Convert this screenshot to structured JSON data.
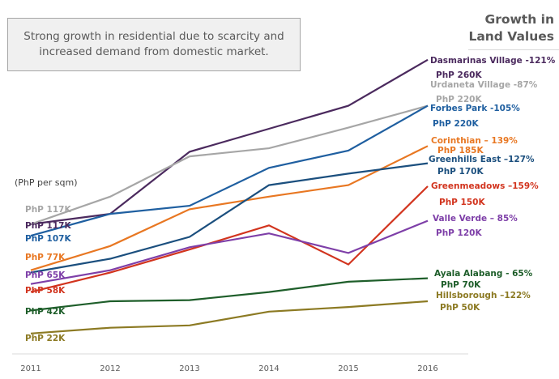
{
  "callout": {
    "text": "Strong growth in residential due to scarcity and increased demand from domestic market."
  },
  "title": {
    "line1": "Growth in",
    "line2": "Land Values"
  },
  "unit_label": "(PhP per sqm)",
  "chart_data": {
    "type": "line",
    "title": "Growth in Land Values",
    "subtitle": "Strong growth in residential due to scarcity and increased demand from domestic market.",
    "xlabel": "",
    "ylabel": "(PhP per sqm)",
    "units": "PhP thousand per sqm",
    "x": [
      "2011",
      "2012",
      "2013",
      "2014",
      "2015",
      "2016"
    ],
    "ylim": [
      0,
      270
    ],
    "grid": false,
    "legend": "end-of-line labels (right)",
    "series": [
      {
        "name": "Dasmarinas Village",
        "growth_label": "Dasmarinas Village -121%",
        "start_label": "PhP 117K",
        "end_label": "PhP 260K",
        "color": "#4B2A5E",
        "values": [
          117,
          126,
          180,
          200,
          220,
          260
        ]
      },
      {
        "name": "Urdaneta Village",
        "growth_label": "Urdaneta Village -87%",
        "start_label": "PhP 117K",
        "end_label": "PhP 220K",
        "color": "#A6A6A6",
        "values": [
          117,
          141,
          176,
          183,
          201,
          220
        ]
      },
      {
        "name": "Forbes Park",
        "growth_label": "Forbes Park -105%",
        "start_label": "PhP 107K",
        "end_label": "PhP 220K",
        "color": "#1F5FA0",
        "values": [
          107,
          126,
          133,
          166,
          181,
          220
        ]
      },
      {
        "name": "Corinthian",
        "growth_label": "Corinthian – 139%",
        "start_label": "PhP 77K",
        "end_label": "PhP 185K",
        "color": "#E87722",
        "values": [
          77,
          98,
          130,
          141,
          151,
          185
        ]
      },
      {
        "name": "Greenhills East",
        "growth_label": "Greenhills East –127%",
        "start_label": "",
        "end_label": "PhP 170K",
        "color": "#1B4F7E",
        "values": [
          75,
          87,
          106,
          151,
          161,
          170
        ]
      },
      {
        "name": "Greenmeadows",
        "growth_label": "Greenmeadows –159%",
        "start_label": "PhP 58K",
        "end_label": "PhP 150K",
        "color": "#D2341E",
        "values": [
          58,
          75,
          95,
          116,
          82,
          150
        ]
      },
      {
        "name": "Valle Verde",
        "growth_label": "Valle Verde – 85%",
        "start_label": "PhP 65K",
        "end_label": "PhP 120K",
        "color": "#7E3FA8",
        "values": [
          65,
          77,
          97,
          109,
          92,
          120
        ]
      },
      {
        "name": "Ayala Alabang",
        "growth_label": "Ayala Alabang - 65%",
        "start_label": "PhP 42K",
        "end_label": "PhP 70K",
        "color": "#1E5E2A",
        "values": [
          42,
          50,
          51,
          58,
          67,
          70
        ]
      },
      {
        "name": "Hillsborough",
        "growth_label": "Hillsborough –122%",
        "start_label": "PhP 22K",
        "end_label": "PhP 50K",
        "color": "#8C7A23",
        "values": [
          22,
          27,
          29,
          41,
          45,
          50
        ]
      }
    ]
  }
}
